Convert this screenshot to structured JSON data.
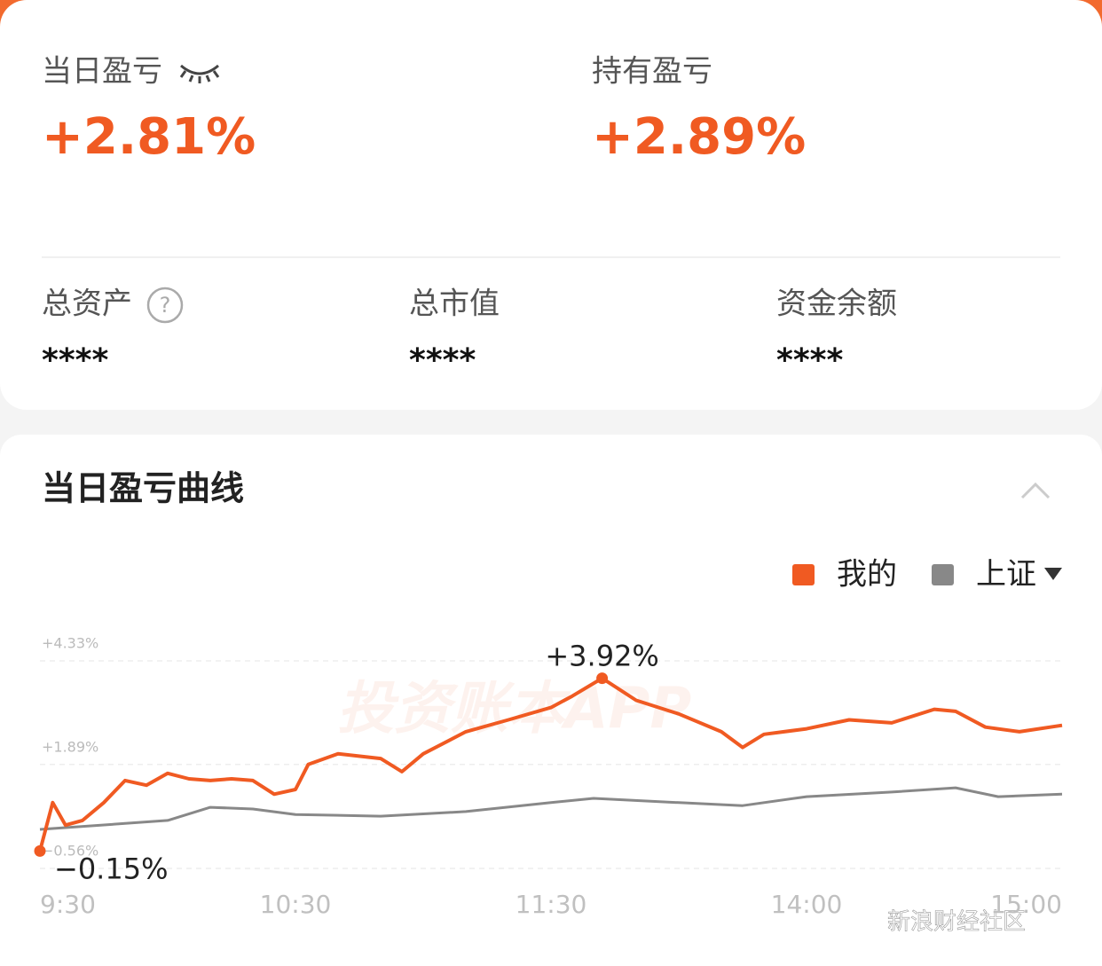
{
  "header": {
    "daily_label": "当日盈亏",
    "daily_value": "+2.81%",
    "holding_label": "持有盈亏",
    "holding_value": "+2.89%"
  },
  "assets": [
    {
      "label": "总资产",
      "value": "****"
    },
    {
      "label": "总市值",
      "value": "****"
    },
    {
      "label": "资金余额",
      "value": "****"
    }
  ],
  "section_title": "当日盈亏曲线",
  "watermarks": [
    "投资账本APP",
    "新浪财经社区"
  ],
  "chart_data": {
    "type": "line",
    "xlim": [
      0,
      240
    ],
    "xticks": [
      {
        "value": 0,
        "label": "9:30"
      },
      {
        "value": 60,
        "label": "10:30"
      },
      {
        "value": 120,
        "label": "11:30"
      },
      {
        "value": 180,
        "label": "14:00"
      },
      {
        "value": 240,
        "label": "15:00"
      }
    ],
    "ylim": [
      -0.56,
      4.33
    ],
    "yticks": [
      {
        "value": 4.33,
        "label": "+4.33%"
      },
      {
        "value": 1.89,
        "label": "+1.89%"
      },
      {
        "value": -0.56,
        "label": "−0.56%"
      }
    ],
    "grid": true,
    "legend": "top-right",
    "series": [
      {
        "name": "我的",
        "color": "#f05a22",
        "x": [
          0,
          3,
          6,
          10,
          15,
          20,
          25,
          30,
          35,
          40,
          45,
          50,
          55,
          60,
          63,
          70,
          80,
          85,
          90,
          100,
          110,
          120,
          125,
          132,
          140,
          150,
          160,
          165,
          170,
          180,
          190,
          200,
          210,
          215,
          222,
          230,
          240
        ],
        "values": [
          -0.15,
          0.99,
          0.46,
          0.57,
          0.99,
          1.51,
          1.4,
          1.68,
          1.55,
          1.51,
          1.55,
          1.51,
          1.19,
          1.3,
          1.89,
          2.14,
          2.03,
          1.72,
          2.14,
          2.66,
          2.94,
          3.23,
          3.5,
          3.92,
          3.4,
          3.08,
          2.66,
          2.29,
          2.6,
          2.73,
          2.94,
          2.87,
          3.19,
          3.14,
          2.77,
          2.66,
          2.81
        ]
      },
      {
        "name": "上证",
        "color": "#888888",
        "x": [
          0,
          20,
          30,
          40,
          50,
          60,
          80,
          100,
          120,
          130,
          150,
          165,
          180,
          200,
          215,
          225,
          240
        ],
        "values": [
          0.36,
          0.5,
          0.57,
          0.88,
          0.84,
          0.71,
          0.67,
          0.78,
          0.99,
          1.09,
          0.99,
          0.92,
          1.13,
          1.24,
          1.34,
          1.13,
          1.19
        ]
      }
    ],
    "annotations": [
      {
        "text": "+3.92%",
        "x": 132,
        "y": 3.92
      },
      {
        "text": "−0.15%",
        "x": 0,
        "y": -0.15
      }
    ]
  }
}
